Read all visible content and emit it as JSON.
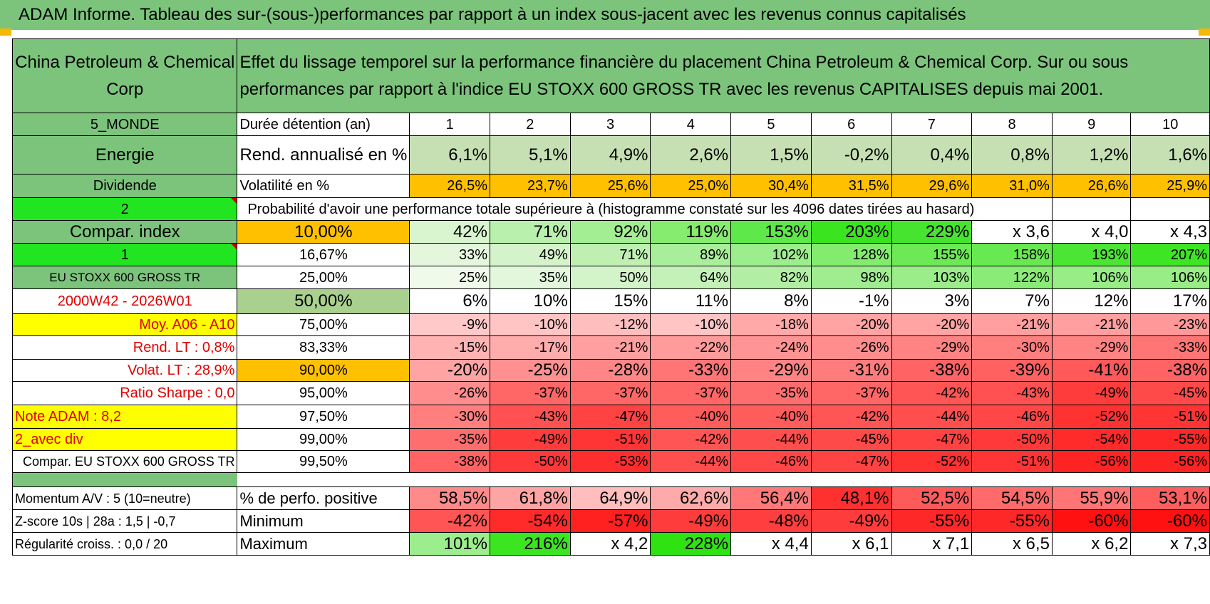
{
  "banner": "ADAM Informe. Tableau des sur-(sous-)performances par rapport à un index sous-jacent avec les revenus connus capitalisés",
  "header": {
    "company": "China Petroleum & Chemical Corp",
    "description": "Effet du lissage temporel sur la performance financière du placement China Petroleum & Chemical Corp. Sur ou sous performances par rapport à l'indice EU STOXX 600 GROSS TR avec les revenus CAPITALISES depuis mai 2001."
  },
  "left_labels": {
    "region": "5_MONDE",
    "sector": "Energie",
    "type": "Dividende",
    "selector_2": "2",
    "compar_index": "Compar. index",
    "selector_1": "1",
    "index_name": "EU STOXX 600 GROSS TR",
    "period": "2000W42 - 2026W01",
    "moy": "Moy. A06 - A10",
    "rend_lt": "Rend. LT :    0,8%",
    "volat_lt": "Volat. LT :    28,9%",
    "sharpe": "Ratio Sharpe :     0,0",
    "note": "Note ADAM : 8,2",
    "avec_div": "2_avec div",
    "compar_full": "Compar. EU STOXX 600 GROSS TR"
  },
  "row_labels": {
    "duree": "Durée détention (an)",
    "rend": "Rend. annualisé en %",
    "vol": "Volatilité en %",
    "prob": "Probabilité d'avoir une performance totale supérieure à (histogramme constaté sur les 4096 dates tirées au hasard)"
  },
  "years": [
    "1",
    "2",
    "3",
    "4",
    "5",
    "6",
    "7",
    "8",
    "9",
    "10"
  ],
  "rend": [
    "6,1%",
    "5,1%",
    "4,9%",
    "2,6%",
    "1,5%",
    "-0,2%",
    "0,4%",
    "0,8%",
    "1,2%",
    "1,6%"
  ],
  "vol": [
    "26,5%",
    "23,7%",
    "25,6%",
    "25,0%",
    "30,4%",
    "31,5%",
    "29,6%",
    "31,0%",
    "26,6%",
    "25,9%"
  ],
  "percentile_rows": [
    {
      "pct": "10,00%",
      "values": [
        "42%",
        "71%",
        "92%",
        "119%",
        "153%",
        "203%",
        "229%",
        "x 3,6",
        "x 4,0",
        "x 4,3"
      ],
      "colors": [
        "#d8f5d0",
        "#b9f0ad",
        "#a3ee92",
        "#86ec70",
        "#5ee84a",
        "#3ae41f",
        "#47e42f",
        "#ffffff",
        "#ffffff",
        "#ffffff"
      ]
    },
    {
      "pct": "16,67%",
      "values": [
        "33%",
        "49%",
        "71%",
        "89%",
        "102%",
        "128%",
        "155%",
        "158%",
        "193%",
        "207%"
      ],
      "colors": [
        "#e4f7dd",
        "#d4f3ca",
        "#bff0b2",
        "#a9ee9a",
        "#9ced8b",
        "#83ec6e",
        "#6ce954",
        "#69e951",
        "#4ae633",
        "#3ee524"
      ]
    },
    {
      "pct": "25,00%",
      "values": [
        "25%",
        "35%",
        "50%",
        "64%",
        "82%",
        "98%",
        "103%",
        "122%",
        "106%",
        "106%"
      ],
      "colors": [
        "#effaea",
        "#e3f7dc",
        "#d3f3c9",
        "#c4f1b8",
        "#b2efa4",
        "#a0ed8f",
        "#9bed8a",
        "#8aec76",
        "#98ed86",
        "#98ed86"
      ]
    },
    {
      "pct": "50,00%",
      "values": [
        "6%",
        "10%",
        "15%",
        "11%",
        "8%",
        "-1%",
        "3%",
        "7%",
        "12%",
        "17%"
      ],
      "colors": [
        "#ffffff",
        "#ffffff",
        "#ffffff",
        "#ffffff",
        "#ffffff",
        "#ffffff",
        "#ffffff",
        "#ffffff",
        "#ffffff",
        "#ffffff"
      ]
    },
    {
      "pct": "75,00%",
      "values": [
        "-9%",
        "-10%",
        "-12%",
        "-10%",
        "-18%",
        "-20%",
        "-20%",
        "-21%",
        "-21%",
        "-23%"
      ],
      "colors": [
        "#ffc9c9",
        "#ffc5c5",
        "#ffbebe",
        "#ffc5c5",
        "#ffa9a9",
        "#ffa3a3",
        "#ffa3a3",
        "#ff9f9f",
        "#ff9f9f",
        "#ff9898"
      ]
    },
    {
      "pct": "83,33%",
      "values": [
        "-15%",
        "-17%",
        "-21%",
        "-22%",
        "-24%",
        "-26%",
        "-29%",
        "-30%",
        "-29%",
        "-33%"
      ],
      "colors": [
        "#ffb3b3",
        "#ffacac",
        "#ff9f9f",
        "#ff9b9b",
        "#ff9494",
        "#ff8d8d",
        "#ff8383",
        "#ff7f7f",
        "#ff8383",
        "#ff7575"
      ]
    },
    {
      "pct": "90,00%",
      "values": [
        "-20%",
        "-25%",
        "-28%",
        "-33%",
        "-29%",
        "-31%",
        "-38%",
        "-39%",
        "-41%",
        "-38%"
      ],
      "colors": [
        "#ffa3a3",
        "#ff9090",
        "#ff8686",
        "#ff7575",
        "#ff8383",
        "#ff7c7c",
        "#ff6363",
        "#ff6060",
        "#ff5959",
        "#ff6363"
      ]
    },
    {
      "pct": "95,00%",
      "values": [
        "-26%",
        "-37%",
        "-37%",
        "-37%",
        "-35%",
        "-37%",
        "-42%",
        "-43%",
        "-49%",
        "-45%"
      ],
      "colors": [
        "#ff8d8d",
        "#ff6666",
        "#ff6666",
        "#ff6666",
        "#ff6e6e",
        "#ff6666",
        "#ff5555",
        "#ff5151",
        "#ff3c3c",
        "#ff4a4a"
      ]
    },
    {
      "pct": "97,50%",
      "values": [
        "-30%",
        "-43%",
        "-47%",
        "-40%",
        "-40%",
        "-42%",
        "-44%",
        "-46%",
        "-52%",
        "-51%"
      ],
      "colors": [
        "#ff7f7f",
        "#ff5151",
        "#ff4343",
        "#ff5c5c",
        "#ff5c5c",
        "#ff5555",
        "#ff4e4e",
        "#ff4747",
        "#ff3232",
        "#ff3535"
      ]
    },
    {
      "pct": "99,00%",
      "values": [
        "-35%",
        "-49%",
        "-51%",
        "-42%",
        "-44%",
        "-45%",
        "-47%",
        "-50%",
        "-54%",
        "-55%"
      ],
      "colors": [
        "#ff6e6e",
        "#ff3c3c",
        "#ff3535",
        "#ff5555",
        "#ff4e4e",
        "#ff4a4a",
        "#ff4343",
        "#ff3939",
        "#ff2b2b",
        "#ff2828"
      ]
    },
    {
      "pct": "99,50%",
      "values": [
        "-38%",
        "-50%",
        "-53%",
        "-44%",
        "-46%",
        "-47%",
        "-52%",
        "-51%",
        "-56%",
        "-56%"
      ],
      "colors": [
        "#ff6363",
        "#ff3939",
        "#ff2e2e",
        "#ff4e4e",
        "#ff4747",
        "#ff4343",
        "#ff3232",
        "#ff3535",
        "#ff2424",
        "#ff2424"
      ]
    }
  ],
  "bottom": {
    "momentum": "Momentum A/V : 5 (10=neutre)",
    "zscore": "Z-score 10s | 28a : 1,5 | -0,7",
    "regularite": "Régularité croiss. : 0,0 / 20",
    "pos_label": "% de perfo. positive",
    "min_label": "Minimum",
    "max_label": "Maximum",
    "pos": [
      "58,5%",
      "61,8%",
      "64,9%",
      "62,6%",
      "56,4%",
      "48,1%",
      "52,5%",
      "54,5%",
      "55,9%",
      "53,1%"
    ],
    "pos_colors": [
      "#ff8a8a",
      "#ffa4a4",
      "#ffbdbd",
      "#ffaaaa",
      "#ff7878",
      "#ff3030",
      "#ff5a5a",
      "#ff6a6a",
      "#ff7575",
      "#ff5e5e"
    ],
    "min": [
      "-42%",
      "-54%",
      "-57%",
      "-49%",
      "-48%",
      "-49%",
      "-55%",
      "-55%",
      "-60%",
      "-60%"
    ],
    "min_colors": [
      "#ff5555",
      "#ff2b2b",
      "#ff2020",
      "#ff3c3c",
      "#ff3f3f",
      "#ff3c3c",
      "#ff2828",
      "#ff2828",
      "#ff1111",
      "#ff1111"
    ],
    "max": [
      "101%",
      "216%",
      "x 4,2",
      "228%",
      "x 4,4",
      "x 6,1",
      "x 7,1",
      "x 6,5",
      "x 6,2",
      "x 7,3"
    ],
    "max_colors": [
      "#9ced8b",
      "#3be520",
      "#ffffff",
      "#2fe312",
      "#ffffff",
      "#ffffff",
      "#ffffff",
      "#ffffff",
      "#ffffff",
      "#ffffff"
    ]
  },
  "colors": {
    "banner_green": "#7cc47c",
    "label_green": "#7cc47c",
    "bright_green": "#22e522",
    "yellow": "#ffff00",
    "orange": "#ffc000",
    "red_text": "#e00000",
    "rend_green": "#c6e0b4",
    "pct50_green": "#a9d08e"
  }
}
